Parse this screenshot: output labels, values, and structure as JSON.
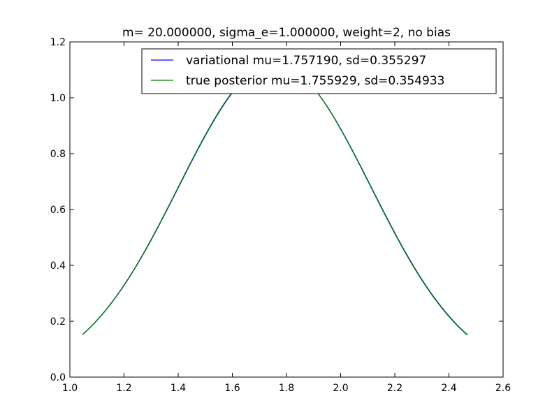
{
  "chart_data": {
    "type": "line",
    "title": "m= 20.000000, sigma_e=1.000000, weight=2, no bias",
    "xlabel": "",
    "ylabel": "",
    "xlim": [
      1.0,
      2.6
    ],
    "ylim": [
      0.0,
      1.2
    ],
    "x_ticks": [
      "1.0",
      "1.2",
      "1.4",
      "1.6",
      "1.8",
      "2.0",
      "2.2",
      "2.4",
      "2.6"
    ],
    "y_ticks": [
      "0.0",
      "0.2",
      "0.4",
      "0.6",
      "0.8",
      "1.0",
      "1.2"
    ],
    "grid": false,
    "legend_position": "top-right",
    "series": [
      {
        "name": "variational mu=1.757190, sd=0.355297",
        "color": "#0000ff",
        "distribution": "normal",
        "mu": 1.75719,
        "sd": 0.355297,
        "x_range": [
          1.047,
          2.468
        ]
      },
      {
        "name": "true posterior mu=1.755929, sd=0.354933",
        "color": "#008000",
        "distribution": "normal",
        "mu": 1.755929,
        "sd": 0.354933,
        "x_range": [
          1.047,
          2.468
        ]
      }
    ]
  }
}
